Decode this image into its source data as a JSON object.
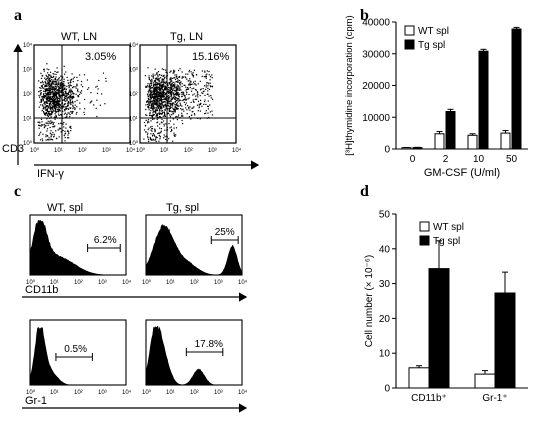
{
  "panels": {
    "a": "a",
    "b": "b",
    "c": "c",
    "d": "d"
  },
  "panel_a": {
    "xlabel": "IFN-γ",
    "ylabel": "CD3",
    "ticks": [
      "10⁰",
      "10¹",
      "10²",
      "10³",
      "10⁴"
    ],
    "plots": [
      {
        "title": "WT, LN",
        "percent": "3.05%"
      },
      {
        "title": "Tg, LN",
        "percent": "15.16%"
      }
    ]
  },
  "panel_c": {
    "ticks": [
      "10⁰",
      "10¹",
      "10²",
      "10³",
      "10⁴"
    ],
    "rows": [
      {
        "xlabel": "CD11b",
        "plots": [
          {
            "title": "WT, spl",
            "percent": "6.2%"
          },
          {
            "title": "Tg, spl",
            "percent": "25%"
          }
        ]
      },
      {
        "xlabel": "Gr-1",
        "plots": [
          {
            "percent": "0.5%"
          },
          {
            "percent": "17.8%"
          }
        ]
      }
    ]
  },
  "chart_data": [
    {
      "panel": "b",
      "type": "bar",
      "categories": [
        "0",
        "2",
        "10",
        "50"
      ],
      "series": [
        {
          "name": "WT spl",
          "values": [
            400,
            4800,
            4300,
            5000
          ],
          "errors": [
            80,
            700,
            500,
            800
          ],
          "color": "#ffffff"
        },
        {
          "name": "Tg spl",
          "values": [
            450,
            11800,
            30800,
            37800
          ],
          "errors": [
            80,
            700,
            600,
            500
          ],
          "color": "#000000"
        }
      ],
      "xlabel": "GM-CSF (U/ml)",
      "ylabel": "[³H]thymidine incorporation (cpm)",
      "ylim": [
        0,
        40000
      ],
      "yticks": [
        0,
        10000,
        20000,
        30000,
        40000
      ],
      "legend": "top-left"
    },
    {
      "panel": "d",
      "type": "bar",
      "categories": [
        "CD11b⁺",
        "Gr-1⁺"
      ],
      "series": [
        {
          "name": "WT spl",
          "values": [
            5.8,
            4.0
          ],
          "errors": [
            0.6,
            1.0
          ],
          "color": "#ffffff"
        },
        {
          "name": "Tg spl",
          "values": [
            34.3,
            27.3
          ],
          "errors": [
            8.0,
            6.0
          ],
          "color": "#000000"
        }
      ],
      "ylabel": "Cell number (× 10⁻⁶)",
      "ylim": [
        0,
        50
      ],
      "yticks": [
        0,
        10,
        20,
        30,
        40,
        50
      ],
      "legend": "top-right"
    }
  ]
}
